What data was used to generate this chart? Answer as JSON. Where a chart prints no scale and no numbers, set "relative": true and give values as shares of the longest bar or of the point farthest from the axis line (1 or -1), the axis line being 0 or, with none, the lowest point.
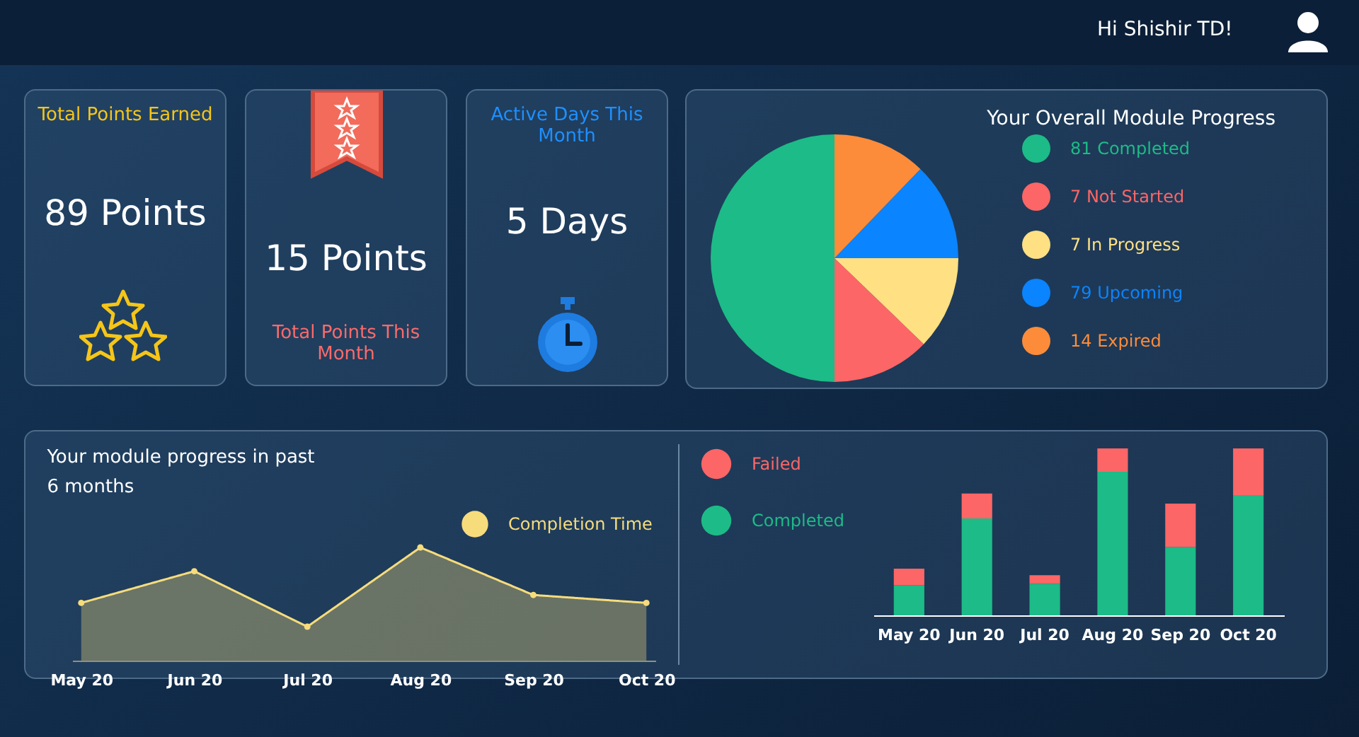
{
  "chart_data": [
    {
      "type": "other",
      "annotations": [
        "Hi Shishir TD!"
      ]
    },
    {
      "type": "other",
      "title": "Total Points Earned",
      "annotations": [
        "89 Points"
      ]
    },
    {
      "type": "other",
      "title": "Total Points This Month",
      "annotations": [
        "15 Points"
      ]
    },
    {
      "type": "other",
      "title": "Active Days This Month",
      "annotations": [
        "5 Days"
      ]
    },
    {
      "type": "pie",
      "title": "Your Overall Module Progress",
      "categories": [
        "81 Completed",
        "7 Not Started",
        "7 In Progress",
        "79 Upcoming",
        "14 Expired"
      ],
      "values": [
        50,
        12.8,
        12.2,
        12.8,
        12.2
      ],
      "colors": [
        "#1dbb87",
        "#fc6666",
        "#ffe083",
        "#0a84ff",
        "#fd8c3a"
      ],
      "legend": "right"
    },
    {
      "type": "area",
      "title": "Your module progress in past 6 months",
      "categories": [
        "May 20",
        "Jun 20",
        "Jul 20",
        "Aug 20",
        "Sep 20",
        "Oct 20"
      ],
      "relative": true,
      "legend": "top right",
      "marker": "circle",
      "series": [
        {
          "name": "Completion Time",
          "color": "#f7dc7c",
          "values": [
            0.51,
            0.79,
            0.3,
            1,
            0.58,
            0.51
          ]
        }
      ]
    },
    {
      "type": "bar",
      "categories": [
        "May 20",
        "Jun 20",
        "Jul 20",
        "Aug 20",
        "Sep 20",
        "Oct 20"
      ],
      "stacked": true,
      "relative": true,
      "legend": "left",
      "series": [
        {
          "name": "Completed",
          "color": "#1dbb87",
          "values": [
            0.18,
            0.58,
            0.19,
            0.86,
            0.41,
            0.72
          ]
        },
        {
          "name": "Failed",
          "color": "#fc6666",
          "values": [
            0.1,
            0.15,
            0.05,
            0.14,
            0.26,
            0.28
          ]
        }
      ]
    }
  ]
}
